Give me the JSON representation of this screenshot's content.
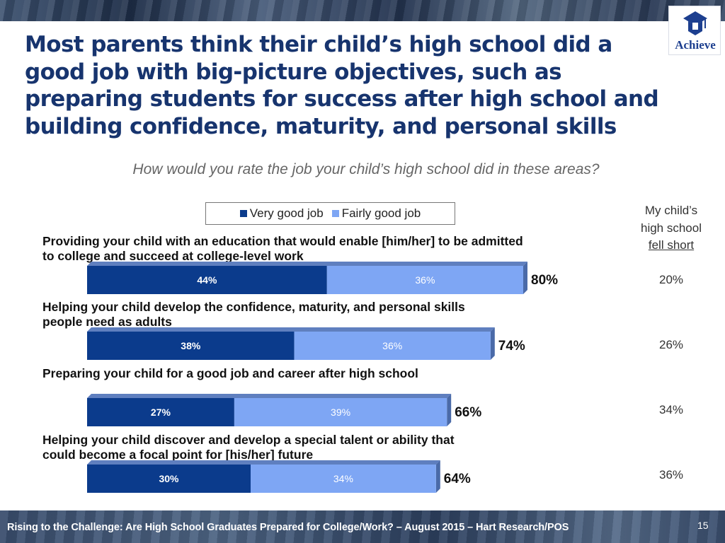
{
  "header": {
    "title": "Most parents think their child’s high school did a good job with big-picture objectives, such as preparing students for success after high school and building confidence, maturity, and personal skills",
    "logo_text": "Achieve"
  },
  "subtitle": "How would you rate the job your child’s high school did in these areas?",
  "side_column": {
    "header_line1": "My child’s",
    "header_line2": "high school",
    "header_line3": "fell short",
    "values": [
      "20%",
      "26%",
      "34%",
      "36%"
    ]
  },
  "colors": {
    "very_good": "#0b3b8c",
    "fairly_good": "#7ea6f4",
    "title": "#17346e"
  },
  "chart_data": {
    "type": "bar",
    "orientation": "horizontal",
    "stacked": true,
    "title": "How would you rate the job your child’s high school did in these areas?",
    "categories": [
      "Providing your child with an education that would enable [him/her] to be admitted to college and succeed at college-level work",
      "Helping your child develop the confidence, maturity, and personal skills people need as adults",
      "Preparing your child for a good job and career after high school",
      "Helping your child discover and develop a special talent or ability that could become a focal point for [his/her] future"
    ],
    "series": [
      {
        "name": "Very good job",
        "values": [
          44,
          38,
          27,
          30
        ],
        "labels": [
          "44%",
          "38%",
          "27%",
          "30%"
        ]
      },
      {
        "name": "Fairly good job",
        "values": [
          36,
          36,
          39,
          34
        ],
        "labels": [
          "36%",
          "36%",
          "39%",
          "34%"
        ]
      }
    ],
    "totals": [
      80,
      74,
      66,
      64
    ],
    "total_labels": [
      "80%",
      "74%",
      "66%",
      "64%"
    ],
    "legend": "top-center",
    "unit": "%",
    "xlim": [
      0,
      100
    ]
  },
  "footer": {
    "text": "Rising to the Challenge:  Are High School Graduates Prepared for College/Work? – August 2015 – Hart Research/POS",
    "page_number": "15"
  }
}
